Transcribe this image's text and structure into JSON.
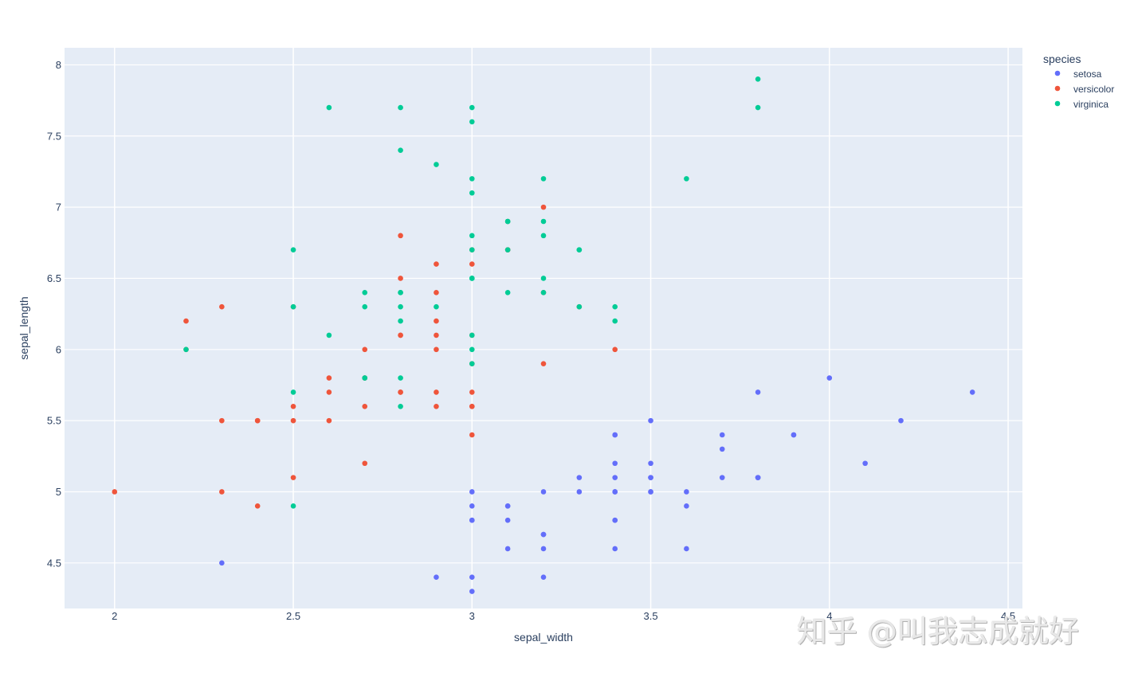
{
  "chart_data": {
    "type": "scatter",
    "title": "",
    "xlabel": "sepal_width",
    "ylabel": "sepal_length",
    "xlim": [
      1.86,
      4.54
    ],
    "ylim": [
      4.18,
      8.12
    ],
    "xticks": [
      "2",
      "2.5",
      "3",
      "3.5",
      "4",
      "4.5"
    ],
    "yticks": [
      "4.5",
      "5",
      "5.5",
      "6",
      "6.5",
      "7",
      "7.5",
      "8"
    ],
    "grid": true,
    "legend": {
      "title": "species",
      "position": "top-right"
    },
    "series": [
      {
        "name": "setosa",
        "color": "#636efa",
        "points": [
          [
            3.5,
            5.1
          ],
          [
            3.0,
            4.9
          ],
          [
            3.2,
            4.7
          ],
          [
            3.1,
            4.6
          ],
          [
            3.6,
            5.0
          ],
          [
            3.9,
            5.4
          ],
          [
            3.4,
            4.6
          ],
          [
            3.4,
            5.0
          ],
          [
            2.9,
            4.4
          ],
          [
            3.1,
            4.9
          ],
          [
            3.7,
            5.4
          ],
          [
            3.4,
            4.8
          ],
          [
            3.0,
            4.8
          ],
          [
            3.0,
            4.3
          ],
          [
            4.0,
            5.8
          ],
          [
            4.4,
            5.7
          ],
          [
            3.9,
            5.4
          ],
          [
            3.5,
            5.1
          ],
          [
            3.8,
            5.7
          ],
          [
            3.8,
            5.1
          ],
          [
            3.4,
            5.4
          ],
          [
            3.7,
            5.1
          ],
          [
            3.6,
            4.6
          ],
          [
            3.3,
            5.1
          ],
          [
            3.4,
            4.8
          ],
          [
            3.0,
            5.0
          ],
          [
            3.4,
            5.0
          ],
          [
            3.5,
            5.2
          ],
          [
            3.4,
            5.2
          ],
          [
            3.2,
            4.7
          ],
          [
            3.1,
            4.8
          ],
          [
            3.4,
            5.4
          ],
          [
            4.1,
            5.2
          ],
          [
            4.2,
            5.5
          ],
          [
            3.1,
            4.9
          ],
          [
            3.2,
            5.0
          ],
          [
            3.5,
            5.5
          ],
          [
            3.6,
            4.9
          ],
          [
            3.0,
            4.4
          ],
          [
            3.4,
            5.1
          ],
          [
            3.5,
            5.0
          ],
          [
            2.3,
            4.5
          ],
          [
            3.2,
            4.4
          ],
          [
            3.5,
            5.0
          ],
          [
            3.8,
            5.1
          ],
          [
            3.0,
            4.8
          ],
          [
            3.8,
            5.1
          ],
          [
            3.2,
            4.6
          ],
          [
            3.7,
            5.3
          ],
          [
            3.3,
            5.0
          ]
        ]
      },
      {
        "name": "versicolor",
        "color": "#EF553B",
        "points": [
          [
            3.2,
            7.0
          ],
          [
            3.2,
            6.4
          ],
          [
            3.1,
            6.9
          ],
          [
            2.3,
            5.5
          ],
          [
            2.8,
            6.5
          ],
          [
            2.8,
            5.7
          ],
          [
            3.3,
            6.3
          ],
          [
            2.4,
            4.9
          ],
          [
            2.9,
            6.6
          ],
          [
            2.7,
            5.2
          ],
          [
            2.0,
            5.0
          ],
          [
            3.0,
            5.9
          ],
          [
            2.2,
            6.0
          ],
          [
            2.9,
            6.1
          ],
          [
            2.9,
            5.6
          ],
          [
            3.1,
            6.7
          ],
          [
            3.0,
            5.6
          ],
          [
            2.7,
            5.8
          ],
          [
            2.2,
            6.2
          ],
          [
            2.5,
            5.6
          ],
          [
            3.2,
            5.9
          ],
          [
            2.8,
            6.1
          ],
          [
            2.5,
            6.3
          ],
          [
            2.8,
            6.1
          ],
          [
            2.9,
            6.4
          ],
          [
            3.0,
            6.6
          ],
          [
            2.8,
            6.8
          ],
          [
            3.0,
            6.7
          ],
          [
            2.9,
            6.0
          ],
          [
            2.6,
            5.7
          ],
          [
            2.4,
            5.5
          ],
          [
            2.4,
            5.5
          ],
          [
            2.7,
            5.8
          ],
          [
            2.7,
            6.0
          ],
          [
            3.0,
            5.4
          ],
          [
            3.4,
            6.0
          ],
          [
            3.1,
            6.7
          ],
          [
            2.3,
            6.3
          ],
          [
            3.0,
            5.6
          ],
          [
            2.5,
            5.5
          ],
          [
            2.6,
            5.5
          ],
          [
            3.0,
            6.1
          ],
          [
            2.6,
            5.8
          ],
          [
            2.3,
            5.0
          ],
          [
            2.7,
            5.6
          ],
          [
            3.0,
            5.7
          ],
          [
            2.9,
            5.7
          ],
          [
            2.9,
            6.2
          ],
          [
            2.5,
            5.1
          ],
          [
            2.8,
            5.7
          ]
        ]
      },
      {
        "name": "virginica",
        "color": "#00cc96",
        "points": [
          [
            3.3,
            6.3
          ],
          [
            2.7,
            5.8
          ],
          [
            3.0,
            7.1
          ],
          [
            2.9,
            6.3
          ],
          [
            3.0,
            6.5
          ],
          [
            3.0,
            7.6
          ],
          [
            2.5,
            4.9
          ],
          [
            2.9,
            7.3
          ],
          [
            2.5,
            6.7
          ],
          [
            3.6,
            7.2
          ],
          [
            3.2,
            6.5
          ],
          [
            2.7,
            6.4
          ],
          [
            3.0,
            6.8
          ],
          [
            2.5,
            5.7
          ],
          [
            2.8,
            5.8
          ],
          [
            3.2,
            6.4
          ],
          [
            3.0,
            6.5
          ],
          [
            3.8,
            7.7
          ],
          [
            2.6,
            7.7
          ],
          [
            2.2,
            6.0
          ],
          [
            3.2,
            6.9
          ],
          [
            2.8,
            5.6
          ],
          [
            2.8,
            7.7
          ],
          [
            2.7,
            6.3
          ],
          [
            3.3,
            6.7
          ],
          [
            3.2,
            7.2
          ],
          [
            2.8,
            6.2
          ],
          [
            3.0,
            6.1
          ],
          [
            2.8,
            6.4
          ],
          [
            3.0,
            7.2
          ],
          [
            2.8,
            7.4
          ],
          [
            3.8,
            7.9
          ],
          [
            2.8,
            6.4
          ],
          [
            2.8,
            6.3
          ],
          [
            2.6,
            6.1
          ],
          [
            3.0,
            7.7
          ],
          [
            3.4,
            6.3
          ],
          [
            3.1,
            6.4
          ],
          [
            3.0,
            6.0
          ],
          [
            3.1,
            6.9
          ],
          [
            3.1,
            6.7
          ],
          [
            3.1,
            6.9
          ],
          [
            2.7,
            5.8
          ],
          [
            3.2,
            6.8
          ],
          [
            3.3,
            6.7
          ],
          [
            3.0,
            6.7
          ],
          [
            2.5,
            6.3
          ],
          [
            3.0,
            6.5
          ],
          [
            3.4,
            6.2
          ],
          [
            3.0,
            5.9
          ]
        ]
      }
    ]
  },
  "watermark": "知乎 @叫我志成就好"
}
